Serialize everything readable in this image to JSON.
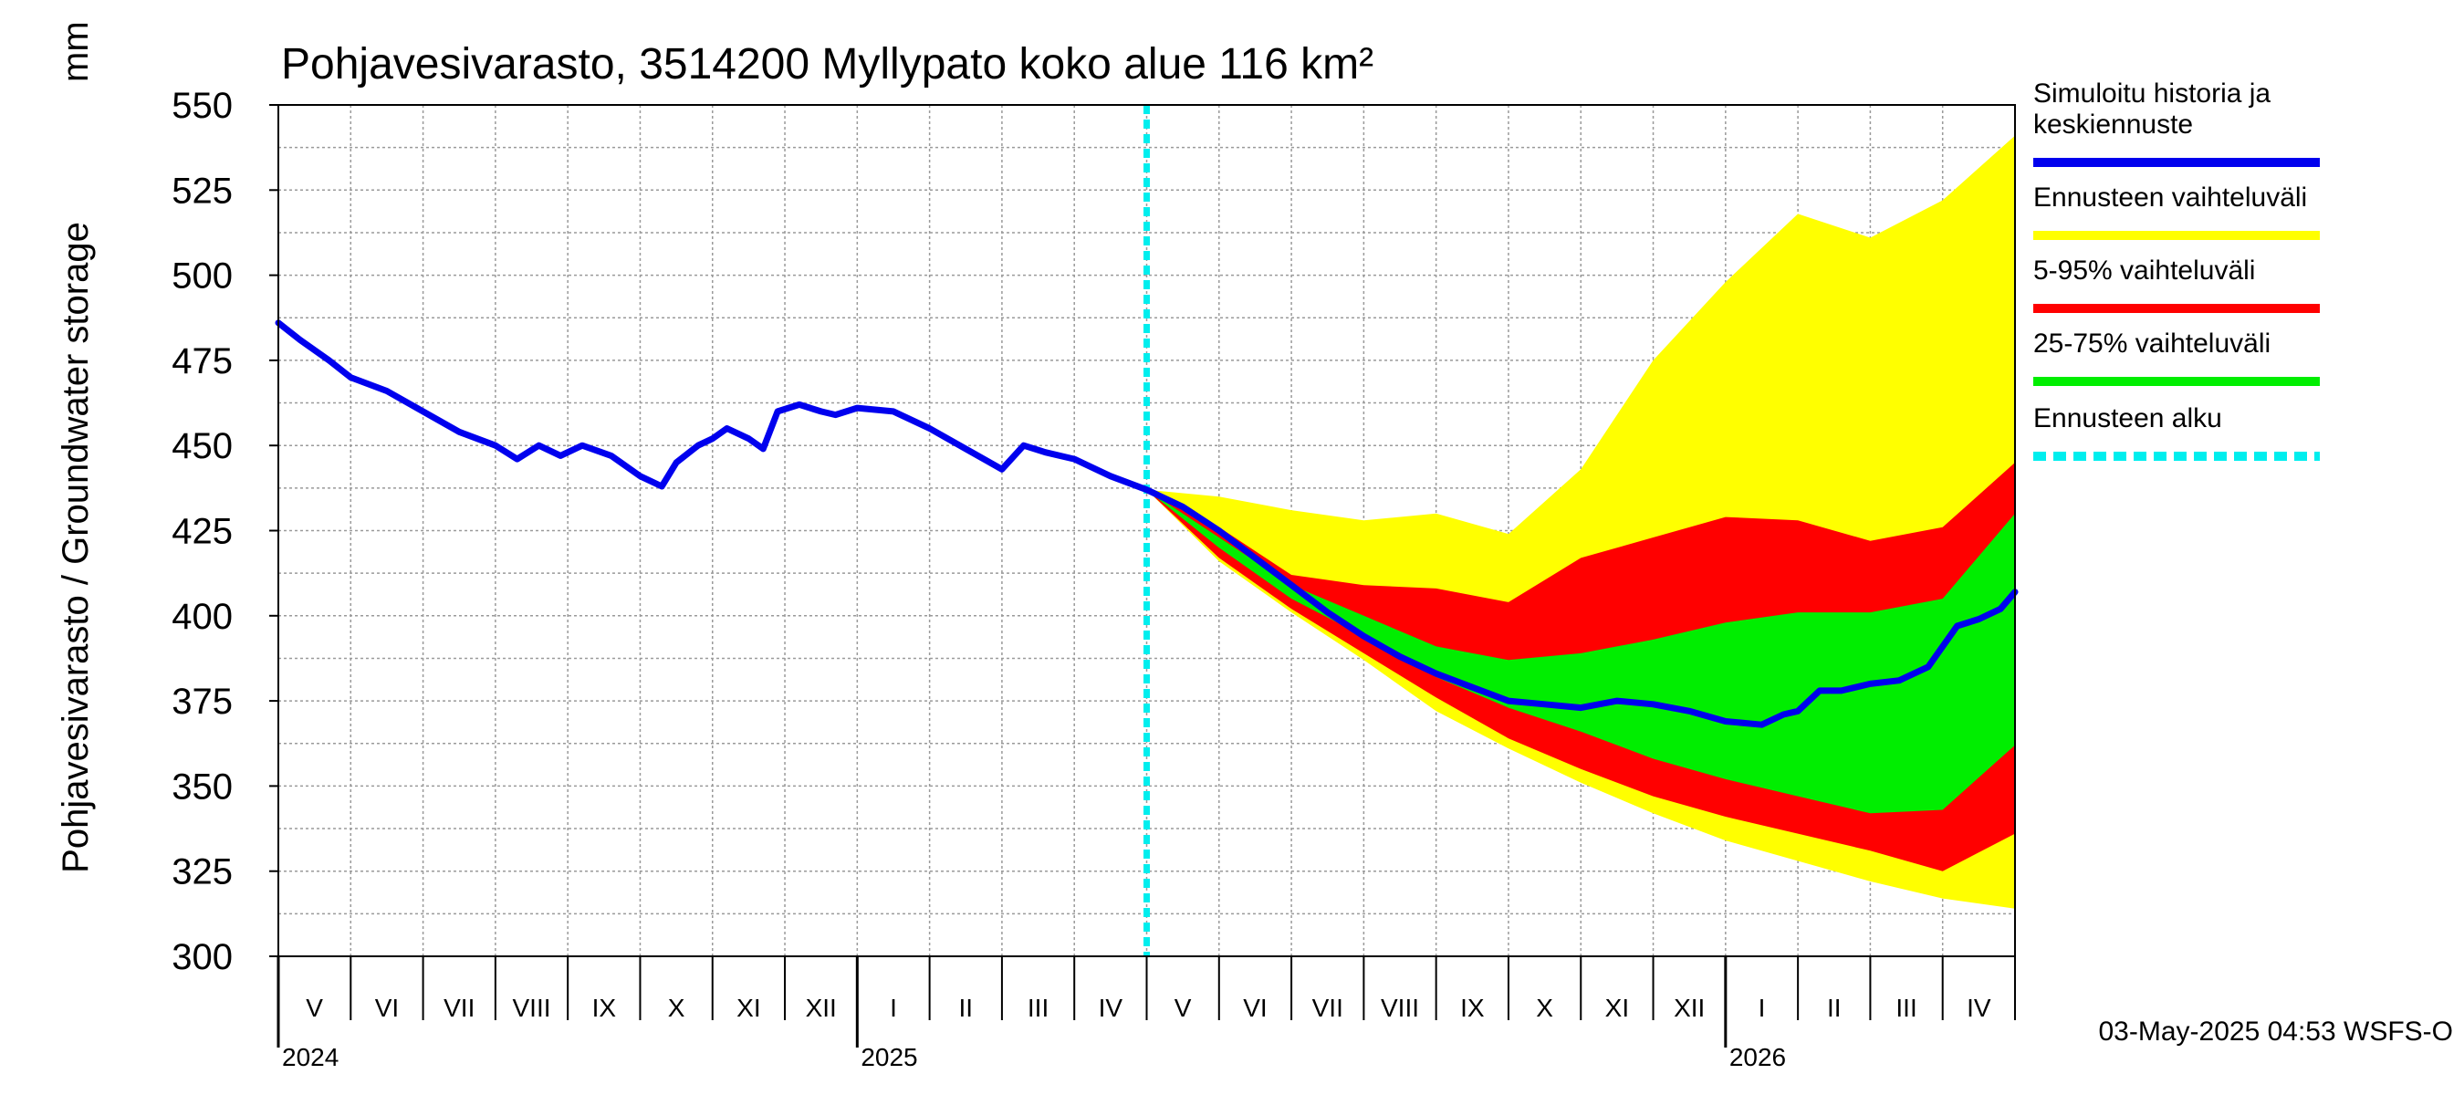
{
  "chart_data": {
    "type": "area",
    "title": "Pohjavesivarasto, 3514200 Myllypato koko alue 116 km²",
    "ylabel": "Pohjavesivarasto / Groundwater storage",
    "yunit": "mm",
    "ylim": [
      300,
      550
    ],
    "yticks": [
      300,
      325,
      350,
      375,
      400,
      425,
      450,
      475,
      500,
      525,
      550
    ],
    "xlim": [
      0,
      24
    ],
    "grid": true,
    "months": [
      {
        "label": "V",
        "x": 0
      },
      {
        "label": "VI",
        "x": 1
      },
      {
        "label": "VII",
        "x": 2
      },
      {
        "label": "VIII",
        "x": 3
      },
      {
        "label": "IX",
        "x": 4
      },
      {
        "label": "X",
        "x": 5
      },
      {
        "label": "XI",
        "x": 6
      },
      {
        "label": "XII",
        "x": 7
      },
      {
        "label": "I",
        "x": 8
      },
      {
        "label": "II",
        "x": 9
      },
      {
        "label": "III",
        "x": 10
      },
      {
        "label": "IV",
        "x": 11
      },
      {
        "label": "V",
        "x": 12
      },
      {
        "label": "VI",
        "x": 13
      },
      {
        "label": "VII",
        "x": 14
      },
      {
        "label": "VIII",
        "x": 15
      },
      {
        "label": "IX",
        "x": 16
      },
      {
        "label": "X",
        "x": 17
      },
      {
        "label": "XI",
        "x": 18
      },
      {
        "label": "XII",
        "x": 19
      },
      {
        "label": "I",
        "x": 20
      },
      {
        "label": "II",
        "x": 21
      },
      {
        "label": "III",
        "x": 22
      },
      {
        "label": "IV",
        "x": 23
      }
    ],
    "years": [
      {
        "label": "2024",
        "x": 0
      },
      {
        "label": "2025",
        "x": 8
      },
      {
        "label": "2026",
        "x": 20
      }
    ],
    "forecast_start_x": 12,
    "series": [
      {
        "name": "Ennusteen vaihteluväli",
        "kind": "band",
        "color": "#ffff00",
        "x": [
          12,
          13,
          14,
          15,
          16,
          17,
          18,
          19,
          20,
          21,
          22,
          23,
          24
        ],
        "upper": [
          437,
          435,
          431,
          428,
          430,
          424,
          443,
          475,
          498,
          518,
          511,
          522,
          541
        ],
        "lower": [
          437,
          416,
          401,
          387,
          372,
          361,
          351,
          342,
          334,
          328,
          322,
          317,
          314
        ]
      },
      {
        "name": "5-95% vaihteluväli",
        "kind": "band",
        "color": "#ff0000",
        "x": [
          12,
          13,
          14,
          15,
          16,
          17,
          18,
          19,
          20,
          21,
          22,
          23,
          24
        ],
        "upper": [
          437,
          426,
          412,
          409,
          408,
          404,
          417,
          423,
          429,
          428,
          422,
          426,
          445
        ],
        "lower": [
          437,
          417,
          402,
          389,
          376,
          364,
          355,
          347,
          341,
          336,
          331,
          325,
          336
        ]
      },
      {
        "name": "25-75% vaihteluväli",
        "kind": "band",
        "color": "#00ee00",
        "x": [
          12,
          13,
          14,
          15,
          16,
          17,
          18,
          19,
          20,
          21,
          22,
          23,
          24
        ],
        "upper": [
          437,
          423,
          409,
          400,
          391,
          387,
          389,
          393,
          398,
          401,
          401,
          405,
          430
        ],
        "lower": [
          437,
          420,
          405,
          394,
          382,
          373,
          366,
          358,
          352,
          347,
          342,
          343,
          362
        ]
      },
      {
        "name": "Simuloitu historia ja keskiennuste",
        "kind": "line",
        "color": "#0000ee",
        "x": [
          0,
          0.3,
          0.7,
          1,
          1.5,
          2,
          2.5,
          3,
          3.3,
          3.6,
          3.9,
          4.2,
          4.6,
          5,
          5.3,
          5.5,
          5.8,
          6,
          6.2,
          6.5,
          6.7,
          6.9,
          7.2,
          7.5,
          7.7,
          8,
          8.5,
          9,
          9.5,
          10,
          10.3,
          10.6,
          11,
          11.5,
          12,
          12.5,
          13,
          13.5,
          14,
          14.5,
          15,
          15.5,
          16,
          16.5,
          17,
          17.5,
          18,
          18.5,
          19,
          19.5,
          20,
          20.5,
          20.8,
          21,
          21.3,
          21.6,
          22,
          22.4,
          22.8,
          23.2,
          23.5,
          23.8,
          24
        ],
        "y": [
          486,
          481,
          475,
          470,
          466,
          460,
          454,
          450,
          446,
          450,
          447,
          450,
          447,
          441,
          438,
          445,
          450,
          452,
          455,
          452,
          449,
          460,
          462,
          460,
          459,
          461,
          460,
          455,
          449,
          443,
          450,
          448,
          446,
          441,
          437,
          432,
          425,
          417,
          409,
          401,
          394,
          388,
          383,
          379,
          375,
          374,
          373,
          375,
          374,
          372,
          369,
          368,
          371,
          372,
          378,
          378,
          380,
          381,
          385,
          397,
          399,
          402,
          407
        ]
      },
      {
        "name": "Ennusteen alku",
        "kind": "vline",
        "color": "#00eeee",
        "x": 12
      }
    ]
  },
  "legend": {
    "items": [
      {
        "line1": "Simuloitu historia ja",
        "line2": "keskiennuste",
        "color": "#0000ee",
        "style": "solid"
      },
      {
        "line1": "Ennusteen vaihteluväli",
        "color": "#ffff00",
        "style": "solid"
      },
      {
        "line1": "5-95% vaihteluväli",
        "color": "#ff0000",
        "style": "solid"
      },
      {
        "line1": "25-75% vaihteluväli",
        "color": "#00ee00",
        "style": "solid"
      },
      {
        "line1": "Ennusteen alku",
        "color": "#00eeee",
        "style": "dashed"
      }
    ]
  },
  "footer": {
    "timestamp": "03-May-2025 04:53 WSFS-O"
  }
}
